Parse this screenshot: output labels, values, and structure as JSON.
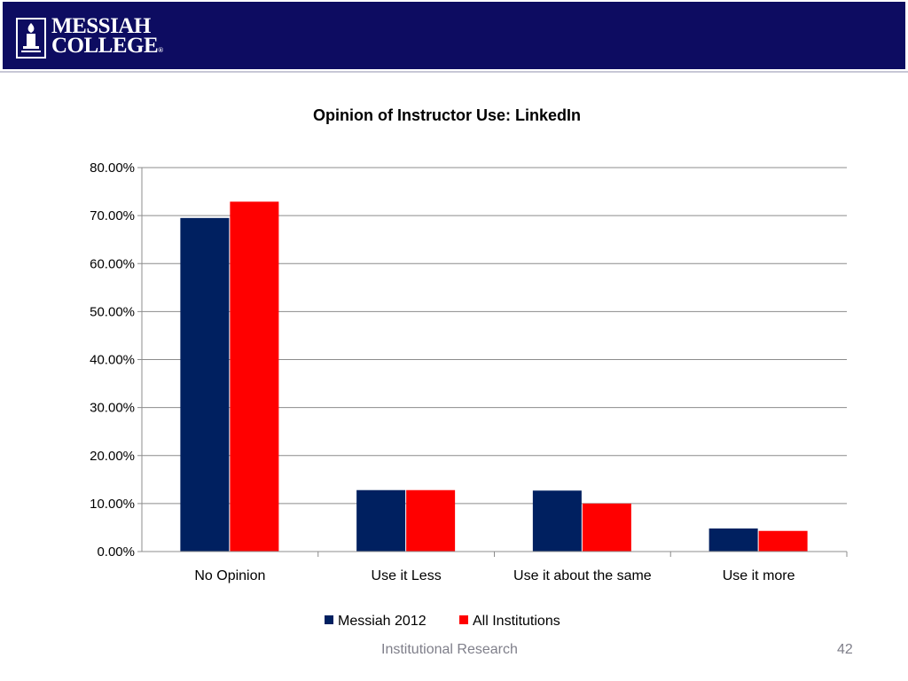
{
  "header": {
    "logo_line1": "MESSIAH",
    "logo_line2": "COLLEGE",
    "logo_mark": "®",
    "band_color": "#0d0c61",
    "seal_icon": "lamp-seal-icon"
  },
  "chart_data": {
    "type": "bar",
    "title": "Opinion of Instructor Use: LinkedIn",
    "xlabel": "",
    "ylabel": "",
    "categories": [
      "No Opinion",
      "Use it Less",
      "Use it about the same",
      "Use it more"
    ],
    "series": [
      {
        "name": "Messiah 2012",
        "color": "#002060",
        "values": [
          69.5,
          12.8,
          12.7,
          4.8
        ]
      },
      {
        "name": "All Institutions",
        "color": "#ff0000",
        "values": [
          72.9,
          12.8,
          10.0,
          4.3
        ]
      }
    ],
    "ylim": [
      0,
      80
    ],
    "yticks": [
      "0.00%",
      "10.00%",
      "20.00%",
      "30.00%",
      "40.00%",
      "50.00%",
      "60.00%",
      "70.00%",
      "80.00%"
    ],
    "grid": true,
    "legend_position": "bottom"
  },
  "footer": {
    "center_text": "Institutional Research",
    "page_number": "42"
  }
}
